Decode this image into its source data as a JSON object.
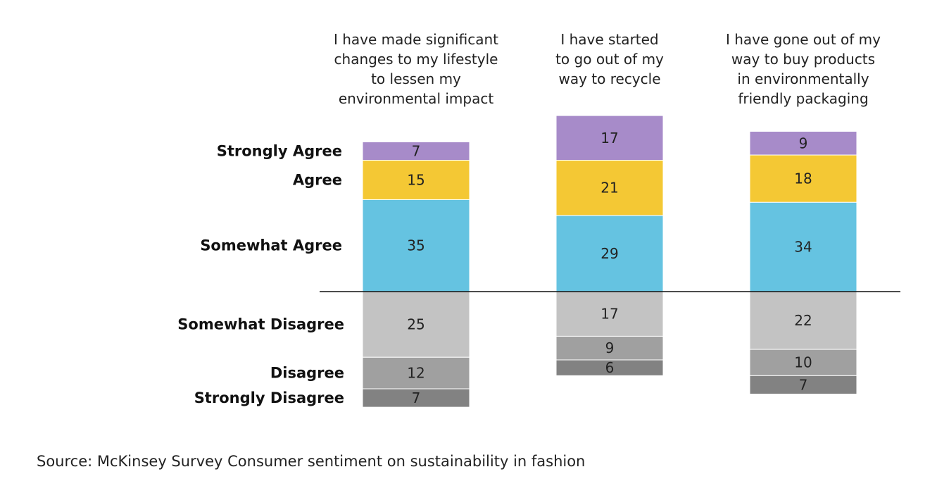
{
  "chart_data": {
    "type": "bar",
    "stacked": true,
    "diverging": true,
    "categories": [
      [
        "I have made significant",
        "changes to my lifestyle",
        "to lessen my",
        "environmental impact"
      ],
      [
        "I have started",
        "to go out of my",
        "way to recycle"
      ],
      [
        "I have gone out of my",
        "way to buy products",
        "in environmentally",
        "friendly packaging"
      ]
    ],
    "series": [
      {
        "name": "Strongly Agree",
        "side": "agree",
        "color": "#A78BC9",
        "values": [
          7,
          17,
          9
        ]
      },
      {
        "name": "Agree",
        "side": "agree",
        "color": "#F4C834",
        "values": [
          15,
          21,
          18
        ]
      },
      {
        "name": "Somewhat Agree",
        "side": "agree",
        "color": "#65C3E1",
        "values": [
          35,
          29,
          34
        ]
      },
      {
        "name": "Somewhat Disagree",
        "side": "disagree",
        "color": "#C3C3C3",
        "values": [
          25,
          17,
          22
        ]
      },
      {
        "name": "Disagree",
        "side": "disagree",
        "color": "#A0A0A0",
        "values": [
          12,
          9,
          10
        ]
      },
      {
        "name": "Strongly Disagree",
        "side": "disagree",
        "color": "#828282",
        "values": [
          7,
          6,
          7
        ]
      }
    ],
    "grid": false
  },
  "source": "Source: McKinsey Survey Consumer sentiment on sustainability in fashion"
}
